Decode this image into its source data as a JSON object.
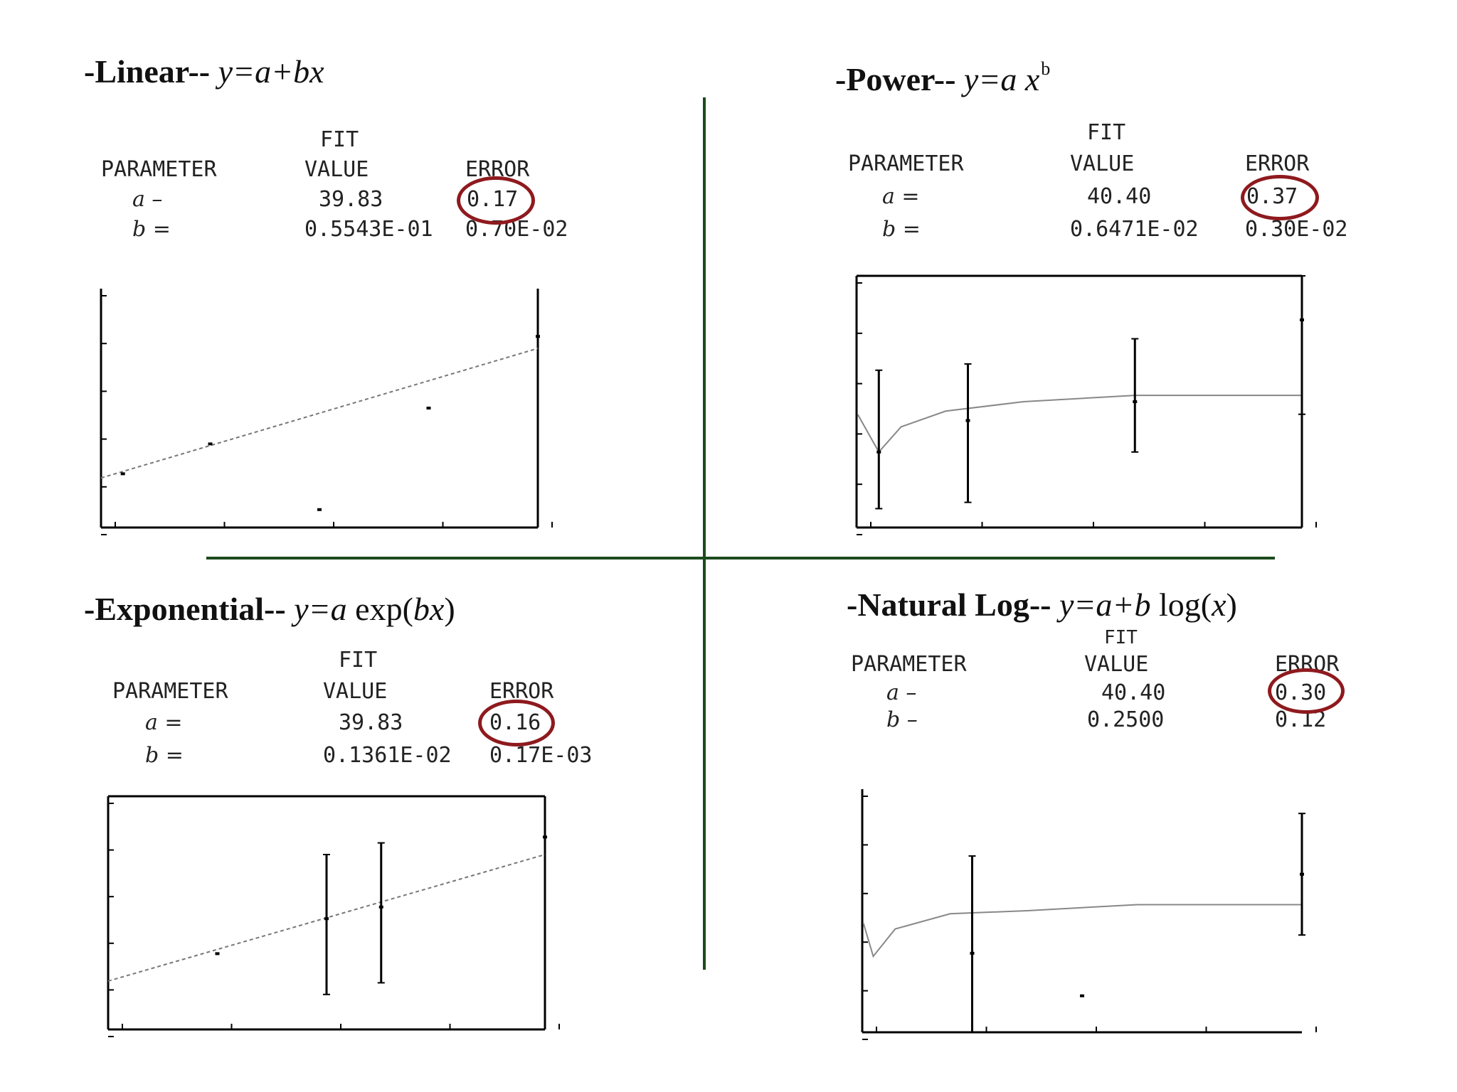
{
  "colors": {
    "divider": "#1d4a1d",
    "highlight_circle": "#8e1a1e",
    "text": "#222222"
  },
  "panels": {
    "linear": {
      "title_name": "-Linear-- ",
      "title_eq": "y=a+bx",
      "table": {
        "header_fit": "FIT",
        "header_param": "PARAMETER",
        "header_value": "VALUE",
        "header_error": "ERROR",
        "a_label": "a –",
        "a_value": "39.83",
        "a_error": "0.17",
        "b_label": "b =",
        "b_value": "0.5543E-01",
        "b_error": "0.70E-02"
      }
    },
    "power": {
      "title_name": "-Power-- ",
      "title_eq": "y=a x",
      "title_exp": "b",
      "table": {
        "header_fit": "FIT",
        "header_param": "PARAMETER",
        "header_value": "VALUE",
        "header_error": "ERROR",
        "a_label": "a =",
        "a_value": "40.40",
        "a_error": "0.37",
        "b_label": "b =",
        "b_value": "0.6471E-02",
        "b_error": "0.30E-02"
      }
    },
    "exponential": {
      "title_name": "-Exponential-- ",
      "title_eq": "y=a ",
      "title_eq_plain": "exp(",
      "title_eq2": "bx",
      "title_eq_close": ")",
      "table": {
        "header_fit": "FIT",
        "header_param": "PARAMETER",
        "header_value": "VALUE",
        "header_error": "ERROR",
        "a_label": "a =",
        "a_value": "39.83",
        "a_error": "0.16",
        "b_label": "b =",
        "b_value": "0.1361E-02",
        "b_error": "0.17E-03"
      }
    },
    "natural_log": {
      "title_name": "-Natural Log-- ",
      "title_eq": "y=a+b ",
      "title_eq_plain": "log(",
      "title_eq2": "x",
      "title_eq_close": ")",
      "table": {
        "header_fit": "FIT",
        "header_param": "PARAMETER",
        "header_value": "VALUE",
        "header_error": "ERROR",
        "a_label": "a –",
        "a_value": "40.40",
        "a_error": "0.30",
        "b_label": "b –",
        "b_value": "0.2500",
        "b_error": "0.12"
      }
    }
  },
  "chart_data": [
    {
      "type": "scatter",
      "title": "",
      "fit": "linear",
      "xlim": [
        0,
        40
      ],
      "ylim": [
        39,
        43
      ],
      "points": [
        [
          2,
          39.9
        ],
        [
          10,
          40.4
        ],
        [
          20,
          39.3
        ],
        [
          30,
          41.0
        ],
        [
          40,
          42.2
        ]
      ],
      "fit_line": [
        [
          0,
          39.83
        ],
        [
          40,
          42.0
        ]
      ],
      "error_bars": []
    },
    {
      "type": "scatter",
      "title": "",
      "fit": "power",
      "xlim": [
        0,
        40
      ],
      "ylim": [
        39,
        43
      ],
      "points": [
        [
          2,
          40.2
        ],
        [
          10,
          40.7
        ],
        [
          25,
          41.0
        ],
        [
          40,
          42.3
        ]
      ],
      "fit_line": [
        [
          0.1,
          40.8
        ],
        [
          2,
          40.2
        ],
        [
          4,
          40.6
        ],
        [
          8,
          40.85
        ],
        [
          15,
          41.0
        ],
        [
          25,
          41.1
        ],
        [
          40,
          41.1
        ]
      ],
      "error_bars": [
        [
          2,
          39.3,
          41.5
        ],
        [
          10,
          39.4,
          41.6
        ],
        [
          25,
          40.2,
          42.0
        ],
        [
          40,
          40.8,
          43.0
        ]
      ]
    },
    {
      "type": "scatter",
      "title": "",
      "fit": "exponential",
      "xlim": [
        0,
        40
      ],
      "ylim": [
        39,
        43
      ],
      "points": [
        [
          10,
          40.3
        ],
        [
          20,
          40.9
        ],
        [
          25,
          41.1
        ],
        [
          40,
          42.3
        ]
      ],
      "fit_line": [
        [
          0,
          39.83
        ],
        [
          40,
          42.0
        ]
      ],
      "error_bars": [
        [
          20,
          39.6,
          42.0
        ],
        [
          25,
          39.8,
          42.2
        ]
      ]
    },
    {
      "type": "scatter",
      "title": "",
      "fit": "natural_log",
      "xlim": [
        0,
        40
      ],
      "ylim": [
        39,
        43
      ],
      "points": [
        [
          10,
          40.3
        ],
        [
          20,
          39.6
        ],
        [
          40,
          41.6
        ]
      ],
      "fit_line": [
        [
          0.1,
          40.8
        ],
        [
          1,
          40.25
        ],
        [
          3,
          40.7
        ],
        [
          8,
          40.95
        ],
        [
          15,
          41.0
        ],
        [
          25,
          41.1
        ],
        [
          40,
          41.1
        ]
      ],
      "error_bars": [
        [
          10,
          39.0,
          41.9
        ],
        [
          40,
          40.6,
          42.6
        ]
      ]
    }
  ]
}
